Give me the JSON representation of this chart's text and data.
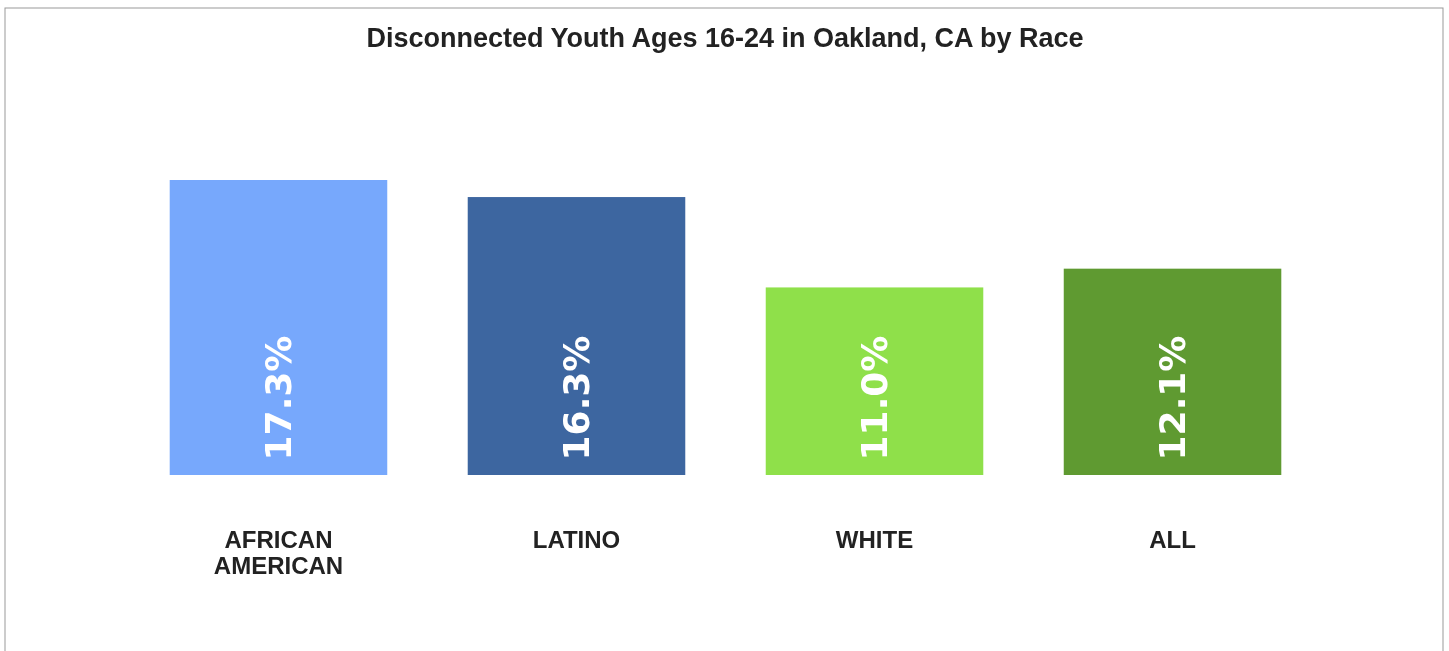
{
  "chart_data": {
    "type": "bar",
    "title": "Disconnected Youth Ages 16-24 in Oakland, CA by Race",
    "categories": [
      "AFRICAN AMERICAN",
      "LATINO",
      "WHITE",
      "ALL"
    ],
    "values": [
      17.3,
      16.3,
      11.0,
      12.1
    ],
    "colors": [
      "#77a8fc",
      "#3d66a0",
      "#8fe04a",
      "#5f9a31"
    ],
    "value_labels": [
      "17.3%",
      "16.3%",
      "11.0%",
      "12.1%"
    ]
  }
}
